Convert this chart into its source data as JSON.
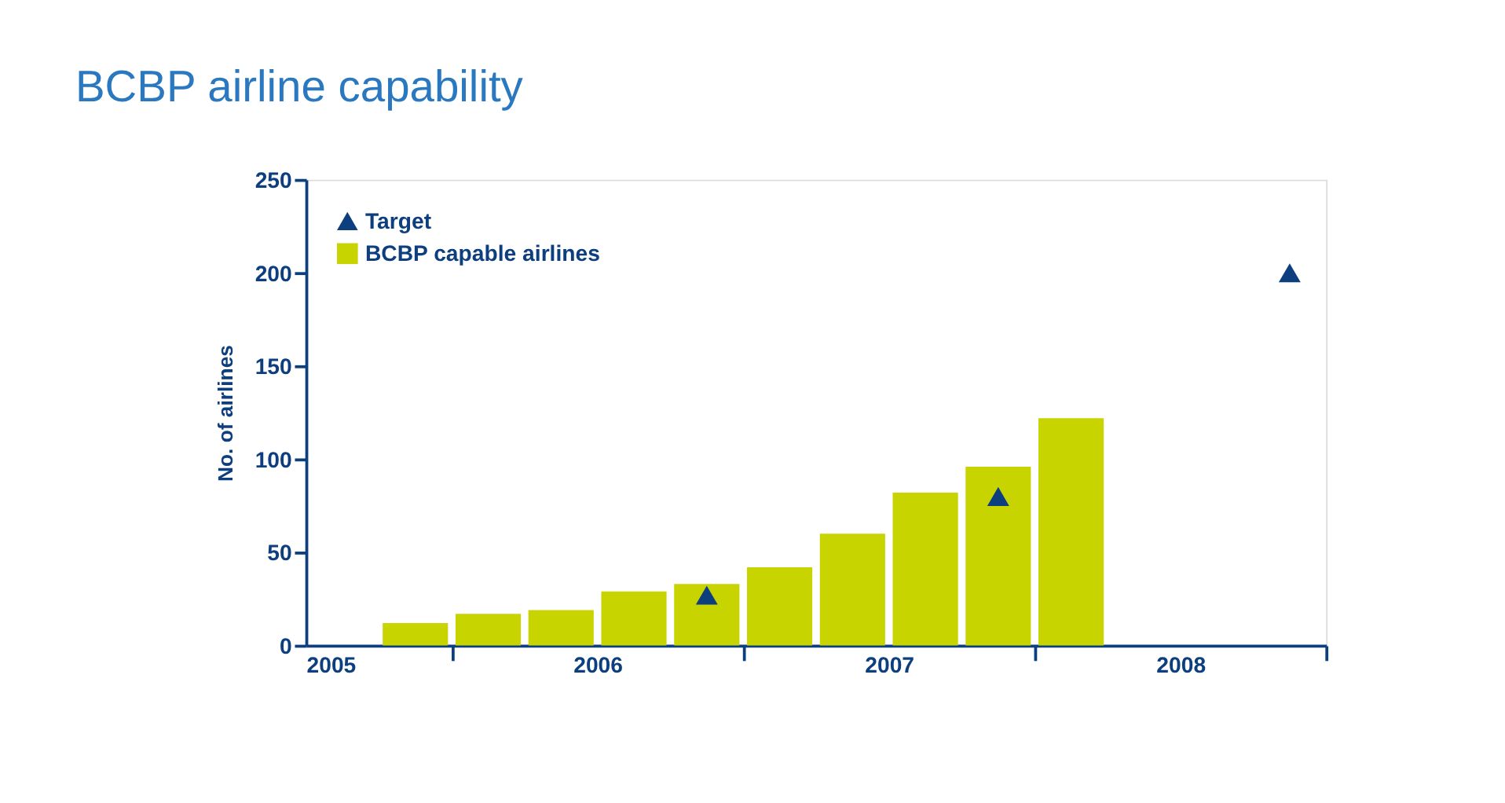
{
  "chart_data": {
    "type": "bar",
    "title": "BCBP airline capability",
    "ylabel": "No. of airlines",
    "xlim": [
      2005,
      2008.5
    ],
    "xticks": [
      2005,
      {
        "value": 2005.5,
        "label": null
      },
      2006,
      {
        "value": 2006.5,
        "label": null
      },
      2007,
      {
        "value": 2007.5,
        "label": null
      },
      2008,
      {
        "value": 2008.5,
        "label": null
      }
    ],
    "ylim": [
      0,
      250
    ],
    "yticks": [
      0,
      50,
      100,
      150,
      200,
      250
    ],
    "grid": false,
    "legend": "top left",
    "series": [
      {
        "name": "Target",
        "type": "scatter",
        "marker": "triangle",
        "color": "#0d3f7f",
        "x": [
          2006.375,
          2007.375,
          2008.375
        ],
        "values": [
          27,
          80,
          200
        ]
      },
      {
        "name": "BCBP capable airlines",
        "color": "#c8d400",
        "x": [
          2005.375,
          2005.625,
          2005.875,
          2006.125,
          2006.375,
          2006.625,
          2006.875,
          2007.125,
          2007.375,
          2007.625
        ],
        "values": [
          12,
          17,
          19,
          29,
          33,
          42,
          60,
          82,
          96,
          122
        ]
      }
    ]
  }
}
